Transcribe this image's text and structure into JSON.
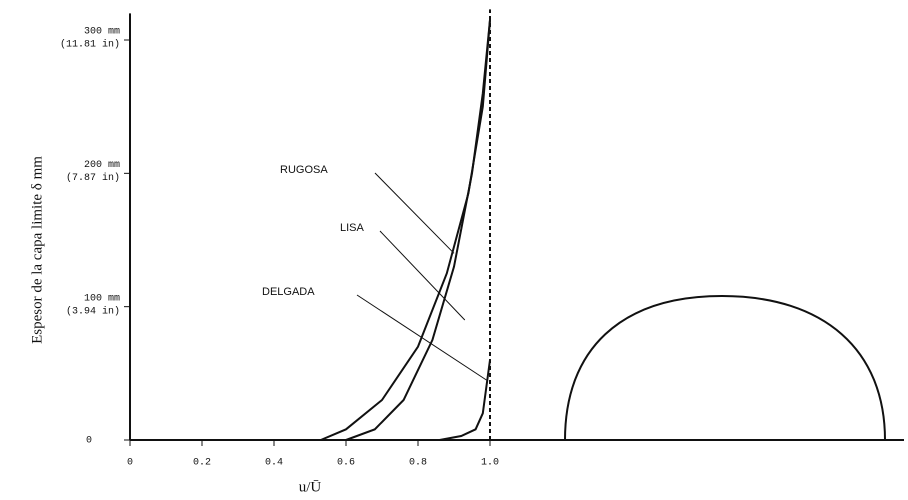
{
  "chart_data": {
    "type": "line",
    "ylabel": "Espesor de la capa limite δ mm",
    "xlabel": "u/Ū",
    "xlim": [
      0,
      2.15
    ],
    "ylim": [
      0,
      320
    ],
    "xticks": [
      0,
      0.2,
      0.4,
      0.6,
      0.8,
      {
        "value": 1,
        "label": "1.0"
      }
    ],
    "yticks": [
      0,
      {
        "value": 100,
        "label": "100 mm",
        "sublabel": "(3.94 in)"
      },
      {
        "value": 200,
        "label": "200 mm",
        "sublabel": "(7.87 in)"
      },
      {
        "value": 300,
        "label": "300 mm",
        "sublabel": "(11.81 in)"
      }
    ],
    "vline": 1,
    "series": [
      {
        "name": "RUGOSA",
        "color": "#111111",
        "x": [
          0.53,
          0.6,
          0.7,
          0.8,
          0.88,
          0.94,
          0.98,
          1.0
        ],
        "values": [
          0,
          8,
          30,
          70,
          125,
          185,
          250,
          315
        ]
      },
      {
        "name": "LISA",
        "color": "#111111",
        "x": [
          0.6,
          0.68,
          0.76,
          0.84,
          0.9,
          0.95,
          0.98,
          1.0
        ],
        "values": [
          0,
          8,
          30,
          75,
          130,
          200,
          260,
          315
        ]
      },
      {
        "name": "DELGADA",
        "color": "#111111",
        "x": [
          0.86,
          0.92,
          0.96,
          0.98,
          0.99,
          1.0
        ],
        "values": [
          0,
          3,
          8,
          20,
          40,
          60
        ]
      }
    ]
  }
}
